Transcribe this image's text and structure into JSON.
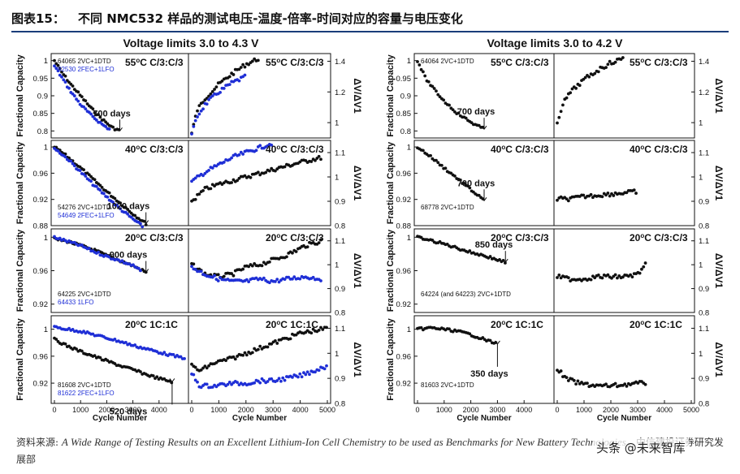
{
  "header": {
    "figure_label": "图表15：",
    "title": "不同 NMC532 样品的测试电压-温度-倍率-时间对应的容量与电压变化"
  },
  "source": {
    "prefix": "资料来源:",
    "citation": "A Wide Range of Testing Results on an Excellent Lithium-Ion Cell Chemistry to be used as Benchmarks for New Battery Technologies",
    "suffix": "，中信建投证券研究发展部"
  },
  "watermark": "头条 @未来智库",
  "colors": {
    "black": "#111111",
    "blue": "#1f2fd6"
  },
  "chart_data": [
    {
      "type": "scatter",
      "title": "Voltage limits 3.0 to 4.3 V",
      "xlabel": "Cycle Number",
      "ylabel_left": "Fractional Capacity",
      "ylabel_right": "ΔV/ΔV1",
      "xlim": [
        0,
        5000
      ],
      "xticks": [
        "0",
        "1000",
        "2000",
        "3000",
        "4000",
        "0",
        "1000",
        "2000",
        "3000",
        "4000",
        "5000"
      ],
      "rows": [
        {
          "condition": "55oC C/3:C/3",
          "days_label": "700 days",
          "cap_ylim": [
            0.78,
            1.02
          ],
          "cap_ticks": [
            "0.8",
            "0.85",
            "0.9",
            "0.95",
            "1"
          ],
          "dv_ylim": [
            0.9,
            1.45
          ],
          "dv_ticks": [
            "1",
            "1.2",
            "1.4"
          ],
          "legend": [
            {
              "cell": "64065 2VC+1DTD",
              "color": "black"
            },
            {
              "cell": "82530 2FEC+1LFO",
              "color": "blue"
            }
          ],
          "series_cap": [
            {
              "name": "64065 2VC+1DTD",
              "color": "black",
              "x": [
                0,
                300,
                600,
                1000,
                1400,
                1800,
                2200,
                2500
              ],
              "y": [
                1.0,
                0.965,
                0.935,
                0.9,
                0.865,
                0.835,
                0.81,
                0.8
              ]
            },
            {
              "name": "82530 2FEC+1LFO",
              "color": "blue",
              "x": [
                0,
                300,
                600,
                1000,
                1400,
                1800,
                2100
              ],
              "y": [
                0.985,
                0.95,
                0.915,
                0.875,
                0.845,
                0.82,
                0.805
              ]
            }
          ],
          "series_dv": [
            {
              "name": "64065 2VC+1DTD",
              "color": "black",
              "x": [
                0,
                200,
                500,
                1000,
                1500,
                2000,
                2500
              ],
              "y": [
                0.93,
                1.08,
                1.16,
                1.25,
                1.32,
                1.38,
                1.42
              ]
            },
            {
              "name": "82530 2FEC+1LFO",
              "color": "blue",
              "x": [
                0,
                200,
                500,
                1000,
                1500,
                2000
              ],
              "y": [
                0.92,
                1.04,
                1.12,
                1.2,
                1.26,
                1.3
              ]
            }
          ]
        },
        {
          "condition": "40oC C/3:C/3",
          "days_label": "1020 days",
          "cap_ylim": [
            0.88,
            1.01
          ],
          "cap_ticks": [
            "0.88",
            "0.92",
            "0.96",
            "1"
          ],
          "dv_ylim": [
            0.8,
            1.15
          ],
          "dv_ticks": [
            "0.8",
            "0.9",
            "1",
            "1.1"
          ],
          "legend": [
            {
              "cell": "54276 2VC+1DTD",
              "color": "black"
            },
            {
              "cell": "54649 2FEC+1LFO",
              "color": "blue"
            }
          ],
          "series_cap": [
            {
              "name": "54276 2VC+1DTD",
              "color": "black",
              "x": [
                0,
                500,
                1000,
                1500,
                2000,
                2500,
                3000,
                3500
              ],
              "y": [
                1.0,
                0.985,
                0.968,
                0.95,
                0.932,
                0.915,
                0.898,
                0.883
              ]
            },
            {
              "name": "54649 2FEC+1LFO",
              "color": "blue",
              "x": [
                0,
                500,
                1000,
                1500,
                2000,
                2500,
                3000,
                3400
              ],
              "y": [
                0.998,
                0.982,
                0.962,
                0.942,
                0.924,
                0.906,
                0.89,
                0.878
              ]
            }
          ],
          "series_dv": [
            {
              "name": "54276 2VC+1DTD",
              "color": "black",
              "x": [
                0,
                500,
                1000,
                2000,
                3000,
                4000,
                4800
              ],
              "y": [
                0.9,
                0.95,
                0.97,
                1.0,
                1.03,
                1.06,
                1.08
              ]
            },
            {
              "name": "54649 2FEC+1LFO",
              "color": "blue",
              "x": [
                0,
                500,
                1000,
                1500,
                2000,
                2500,
                3000
              ],
              "y": [
                0.98,
                1.02,
                1.05,
                1.08,
                1.1,
                1.12,
                1.14
              ]
            }
          ]
        },
        {
          "condition": "20oC C/3:C/3",
          "days_label": "900 days",
          "cap_ylim": [
            0.91,
            1.01
          ],
          "cap_ticks": [
            "0.92",
            "0.96",
            "1"
          ],
          "dv_ylim": [
            0.8,
            1.15
          ],
          "dv_ticks": [
            "0.8",
            "0.9",
            "1",
            "1.1"
          ],
          "legend": [
            {
              "cell": "64225 2VC+1DTD",
              "color": "black"
            },
            {
              "cell": "64433 1LFO",
              "color": "blue"
            }
          ],
          "series_cap": [
            {
              "name": "64225 2VC+1DTD",
              "color": "black",
              "x": [
                0,
                500,
                1000,
                1500,
                2000,
                2500,
                3000,
                3500
              ],
              "y": [
                0.998,
                0.995,
                0.99,
                0.985,
                0.978,
                0.972,
                0.966,
                0.958
              ]
            },
            {
              "name": "64433 1LFO",
              "color": "blue",
              "x": [
                0,
                500,
                1000,
                1500,
                2000,
                2500,
                3000,
                3300
              ],
              "y": [
                1.0,
                0.995,
                0.99,
                0.983,
                0.977,
                0.972,
                0.966,
                0.96
              ]
            }
          ],
          "series_dv": [
            {
              "name": "64225 2VC+1DTD",
              "color": "black",
              "x": [
                0,
                500,
                1000,
                1500,
                2000,
                2500,
                3000,
                3500,
                4200,
                4800
              ],
              "y": [
                1.0,
                0.96,
                0.95,
                0.96,
                0.99,
                1.0,
                1.02,
                1.04,
                1.08,
                1.1
              ]
            },
            {
              "name": "64433 1LFO",
              "color": "blue",
              "x": [
                0,
                500,
                1000,
                1500,
                2000,
                2500,
                3000,
                3500,
                4200,
                4800
              ],
              "y": [
                0.99,
                0.96,
                0.94,
                0.93,
                0.93,
                0.94,
                0.93,
                0.94,
                0.95,
                0.94
              ]
            }
          ]
        },
        {
          "condition": "20oC 1C:1C",
          "days_label": "520 days",
          "cap_ylim": [
            0.89,
            1.02
          ],
          "cap_ticks": [
            "0.92",
            "0.96",
            "1"
          ],
          "dv_ylim": [
            0.8,
            1.15
          ],
          "dv_ticks": [
            "0.8",
            "0.9",
            "1",
            "1.1"
          ],
          "legend": [
            {
              "cell": "81608 2VC+1DTD",
              "color": "black"
            },
            {
              "cell": "81622 2FEC+1LFO",
              "color": "blue"
            }
          ],
          "series_cap": [
            {
              "name": "81608 2VC+1DTD",
              "color": "black",
              "x": [
                0,
                500,
                1000,
                1500,
                2000,
                2500,
                3000,
                3500,
                4000,
                4500
              ],
              "y": [
                0.985,
                0.975,
                0.967,
                0.96,
                0.953,
                0.946,
                0.94,
                0.933,
                0.927,
                0.922
              ]
            },
            {
              "name": "81622 2FEC+1LFO",
              "color": "blue",
              "x": [
                0,
                500,
                1000,
                1500,
                2000,
                2500,
                3000,
                3500,
                4000,
                4500,
                5000
              ],
              "y": [
                1.003,
                1.0,
                0.997,
                0.992,
                0.987,
                0.982,
                0.976,
                0.971,
                0.966,
                0.961,
                0.957
              ]
            }
          ],
          "series_dv": [
            {
              "name": "81608 2VC+1DTD",
              "color": "black",
              "x": [
                0,
                300,
                800,
                1500,
                2000,
                2500,
                3000,
                3500,
                4000,
                4500,
                5000
              ],
              "y": [
                0.95,
                0.93,
                0.96,
                0.98,
                1.0,
                1.02,
                1.04,
                1.06,
                1.08,
                1.09,
                1.1
              ]
            },
            {
              "name": "81622 2FEC+1LFO",
              "color": "blue",
              "x": [
                0,
                300,
                800,
                1500,
                2000,
                2500,
                3000,
                3500,
                4000,
                4500,
                5000
              ],
              "y": [
                0.92,
                0.87,
                0.87,
                0.88,
                0.88,
                0.89,
                0.89,
                0.9,
                0.91,
                0.93,
                0.95
              ]
            }
          ]
        }
      ]
    },
    {
      "type": "scatter",
      "title": "Voltage limits 3.0 to 4.2 V",
      "xlabel": "Cycle Number",
      "ylabel_left": "Fractional Capacity",
      "ylabel_right": "ΔV/ΔV1",
      "xlim": [
        0,
        5000
      ],
      "xticks": [
        "0",
        "1000",
        "2000",
        "3000",
        "4000",
        "0",
        "1000",
        "2000",
        "3000",
        "4000",
        "5000"
      ],
      "rows": [
        {
          "condition": "55oC C/3:C/3",
          "days_label": "700 days",
          "cap_ylim": [
            0.78,
            1.02
          ],
          "cap_ticks": [
            "0.8",
            "0.85",
            "0.9",
            "0.95",
            "1"
          ],
          "dv_ylim": [
            0.9,
            1.45
          ],
          "dv_ticks": [
            "1",
            "1.2",
            "1.4"
          ],
          "legend": [
            {
              "cell": "64064 2VC+1DTD",
              "color": "black"
            }
          ],
          "series_cap": [
            {
              "name": "64064 2VC+1DTD",
              "color": "black",
              "x": [
                0,
                300,
                600,
                1000,
                1500,
                2000,
                2500
              ],
              "y": [
                1.0,
                0.95,
                0.92,
                0.885,
                0.85,
                0.825,
                0.805
              ]
            }
          ],
          "series_dv": [
            {
              "name": "64064 2VC+1DTD",
              "color": "black",
              "x": [
                0,
                200,
                500,
                1000,
                1500,
                2000,
                2500
              ],
              "y": [
                1.0,
                1.12,
                1.2,
                1.28,
                1.34,
                1.39,
                1.42
              ]
            }
          ]
        },
        {
          "condition": "40oC C/3:C/3",
          "days_label": "700 days",
          "cap_ylim": [
            0.88,
            1.01
          ],
          "cap_ticks": [
            "0.88",
            "0.92",
            "0.96",
            "1"
          ],
          "dv_ylim": [
            0.8,
            1.15
          ],
          "dv_ticks": [
            "0.8",
            "0.9",
            "1",
            "1.1"
          ],
          "legend": [
            {
              "cell": "68778 2VC+1DTD",
              "color": "black"
            }
          ],
          "series_cap": [
            {
              "name": "68778 2VC+1DTD",
              "color": "black",
              "x": [
                0,
                500,
                1000,
                1500,
                2000,
                2500
              ],
              "y": [
                1.0,
                0.985,
                0.968,
                0.952,
                0.935,
                0.918
              ]
            }
          ],
          "series_dv": [
            {
              "name": "68778 2VC+1DTD",
              "color": "black",
              "x": [
                0,
                500,
                1000,
                1500,
                2000,
                2500,
                3000
              ],
              "y": [
                0.91,
                0.91,
                0.92,
                0.925,
                0.93,
                0.935,
                0.94
              ]
            }
          ]
        },
        {
          "condition": "20oC C/3:C/3",
          "days_label": "850 days",
          "cap_ylim": [
            0.91,
            1.01
          ],
          "cap_ticks": [
            "0.92",
            "0.96",
            "1"
          ],
          "dv_ylim": [
            0.8,
            1.15
          ],
          "dv_ticks": [
            "0.8",
            "0.9",
            "1",
            "1.1"
          ],
          "legend": [
            {
              "cell": "64224 (and 64223) 2VC+1DTD",
              "color": "black"
            }
          ],
          "series_cap": [
            {
              "name": "64224 (and 64223) 2VC+1DTD",
              "color": "black",
              "x": [
                0,
                500,
                1000,
                1500,
                2000,
                2500,
                3000,
                3300
              ],
              "y": [
                1.0,
                0.996,
                0.992,
                0.987,
                0.982,
                0.978,
                0.973,
                0.97
              ]
            }
          ],
          "series_dv": [
            {
              "name": "64224 (and 64223) 2VC+1DTD",
              "color": "black",
              "x": [
                0,
                500,
                1000,
                1500,
                2000,
                2500,
                3000,
                3300
              ],
              "y": [
                0.95,
                0.94,
                0.94,
                0.95,
                0.95,
                0.95,
                0.96,
                1.0
              ]
            }
          ]
        },
        {
          "condition": "20oC 1C:1C",
          "days_label": "350 days",
          "cap_ylim": [
            0.89,
            1.02
          ],
          "cap_ticks": [
            "0.92",
            "0.96",
            "1"
          ],
          "dv_ylim": [
            0.8,
            1.15
          ],
          "dv_ticks": [
            "0.8",
            "0.9",
            "1",
            "1.1"
          ],
          "legend": [
            {
              "cell": "81603 2VC+1DTD",
              "color": "black"
            }
          ],
          "series_cap": [
            {
              "name": "81603 2VC+1DTD",
              "color": "black",
              "x": [
                0,
                500,
                1000,
                1500,
                2000,
                2500,
                3000
              ],
              "y": [
                1.0,
                1.002,
                1.0,
                0.997,
                0.992,
                0.985,
                0.978
              ]
            }
          ],
          "series_dv": [
            {
              "name": "81603 2VC+1DTD",
              "color": "black",
              "x": [
                0,
                300,
                800,
                1500,
                2000,
                2500,
                3000,
                3300
              ],
              "y": [
                0.94,
                0.9,
                0.88,
                0.87,
                0.87,
                0.875,
                0.88,
                0.88
              ]
            }
          ]
        }
      ]
    }
  ]
}
